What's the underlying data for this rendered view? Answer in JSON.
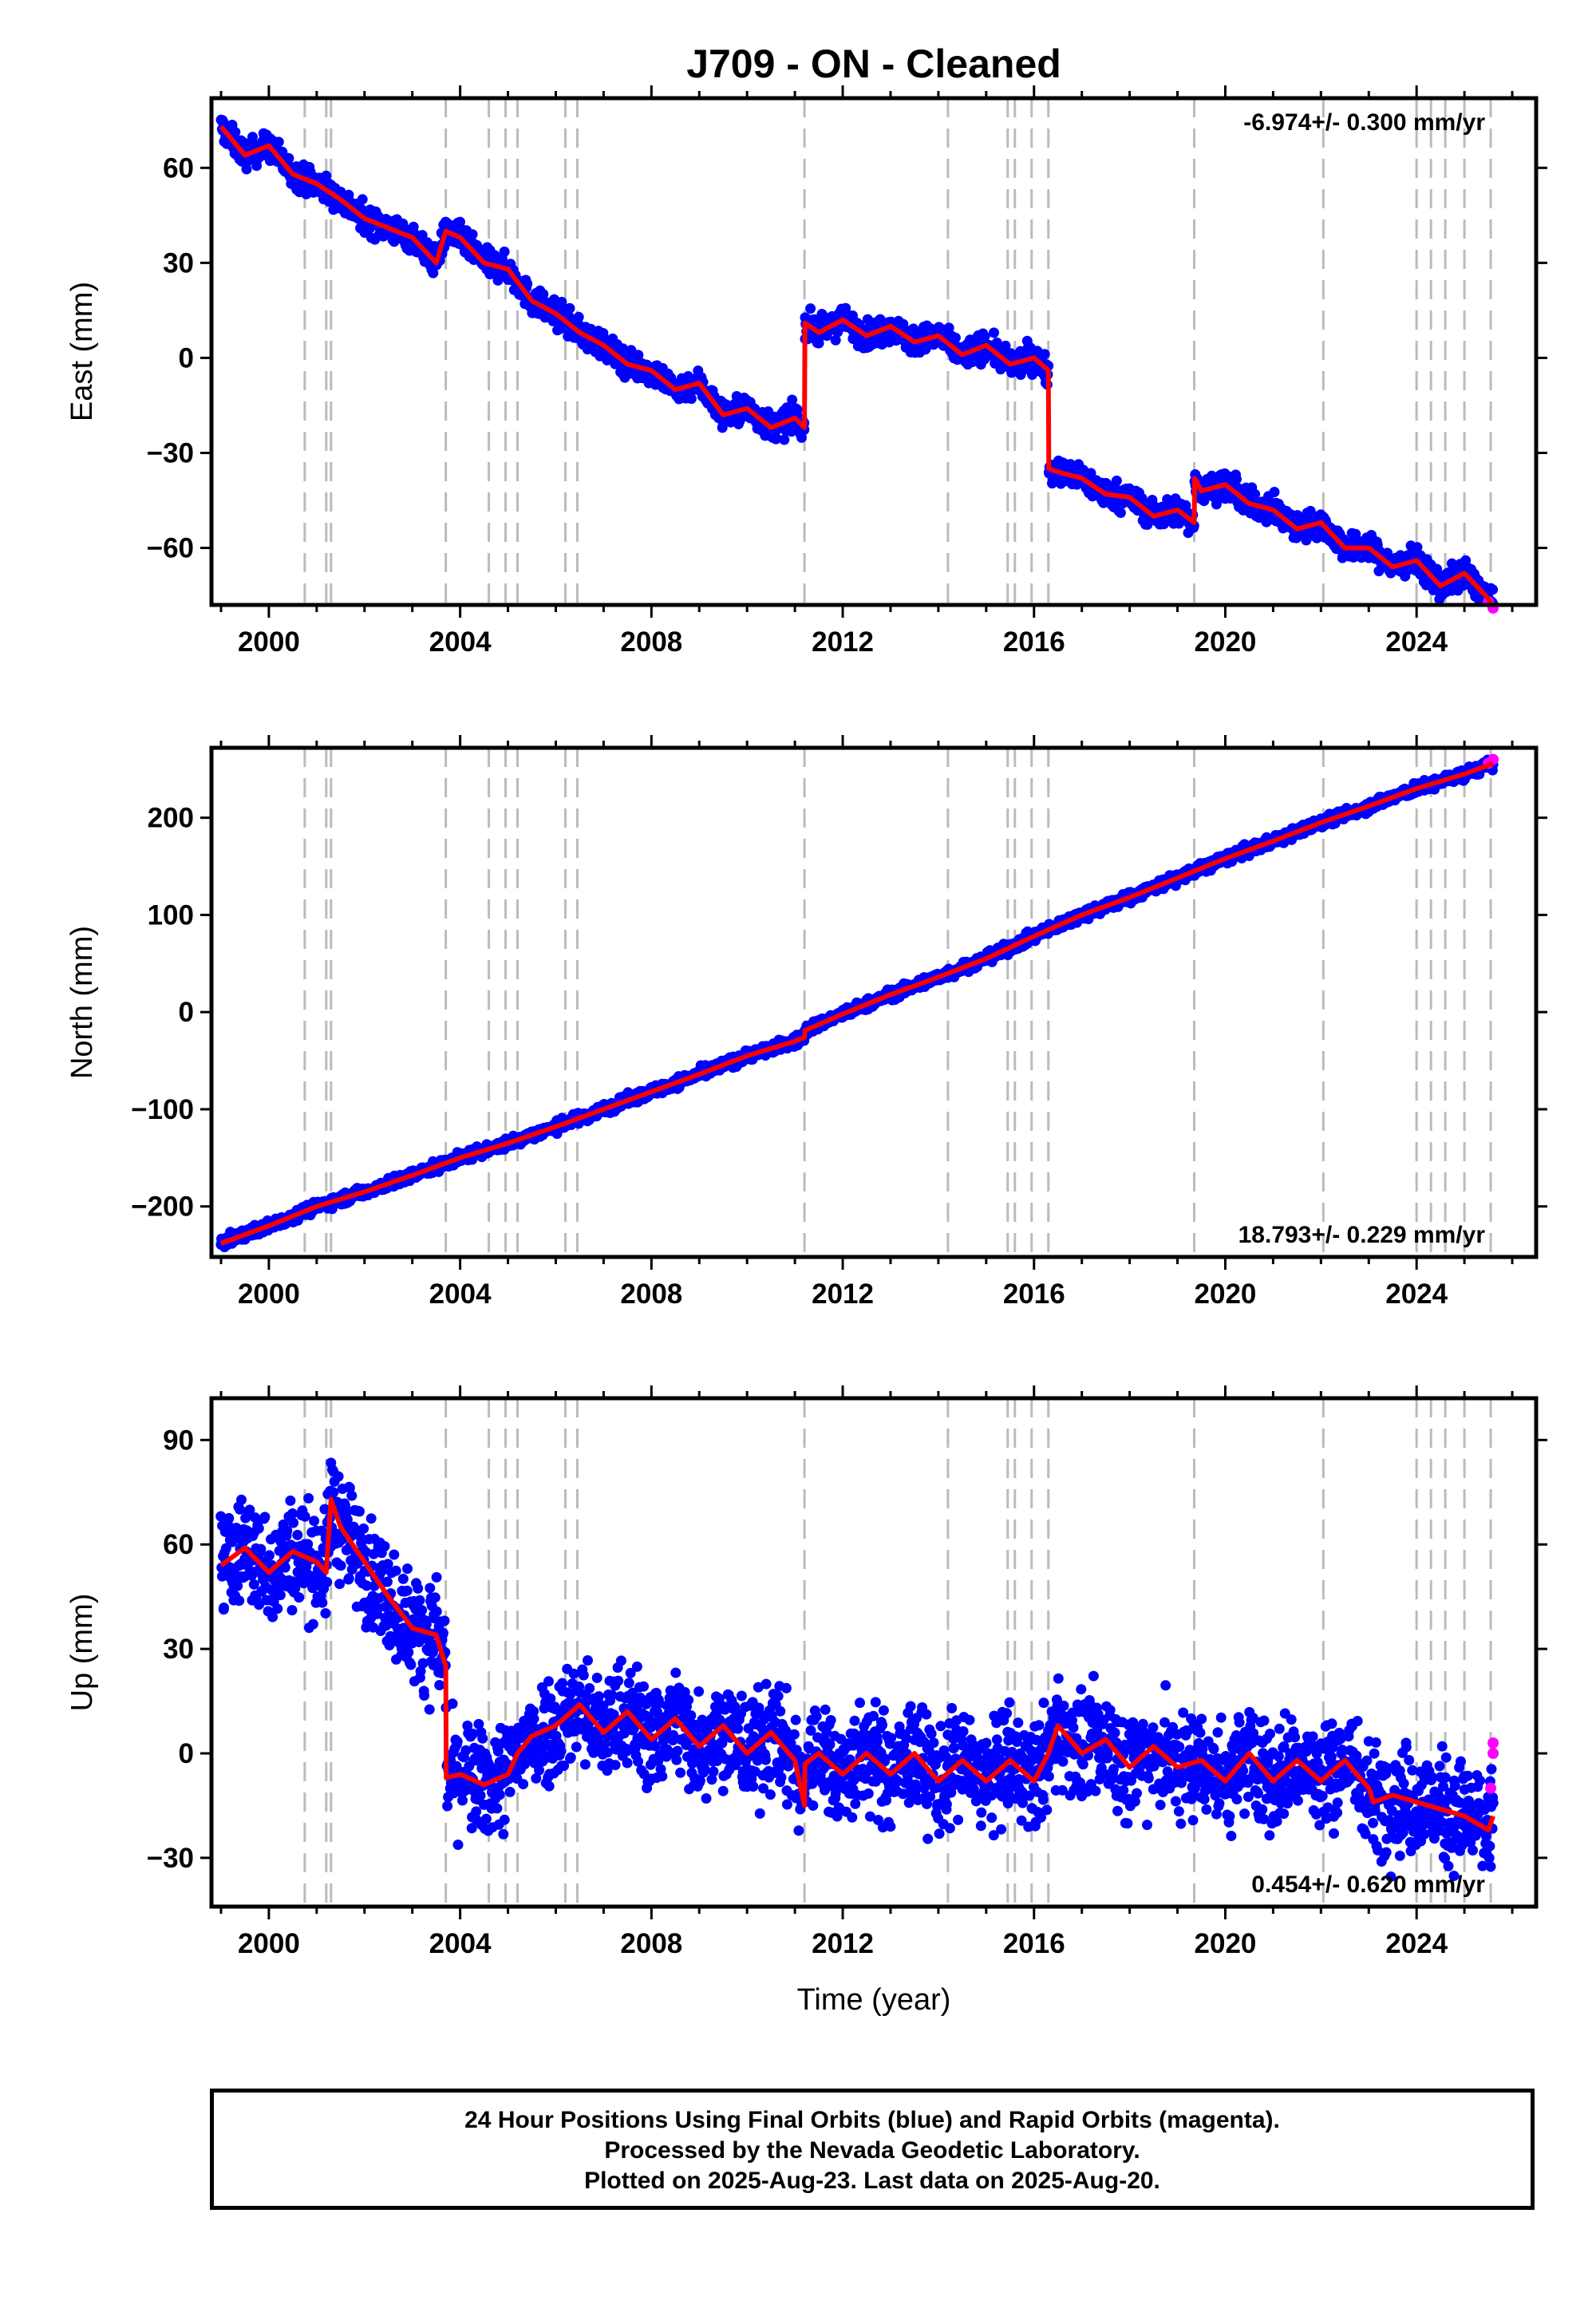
{
  "title": "J709  - ON - Cleaned",
  "footer": {
    "line1": "24 Hour Positions Using Final Orbits (blue) and Rapid Orbits (magenta).",
    "line2": "Processed by the Nevada Geodetic Laboratory.",
    "line3": "Plotted on 2025-Aug-23. Last data on 2025-Aug-20."
  },
  "colors": {
    "final_orbits": "#0000ff",
    "rapid_orbits": "#ff00ff",
    "model": "#ff0000",
    "event_lines": "#bbbbbb"
  },
  "event_years": [
    2000.75,
    2001.2,
    2001.3,
    2003.7,
    2004.6,
    2004.95,
    2005.2,
    2006.2,
    2006.45,
    2011.2,
    2014.2,
    2015.45,
    2015.6,
    2015.95,
    2016.3,
    2019.35,
    2022.05,
    2024.0,
    2024.3,
    2024.6,
    2025.0,
    2025.55
  ],
  "chart_data": [
    {
      "type": "scatter",
      "ylabel": "East (mm)",
      "xlim": [
        1998.8,
        2026.5
      ],
      "ylim": [
        -78,
        82
      ],
      "xticks": [
        "2000",
        "2004",
        "2008",
        "2012",
        "2016",
        "2020",
        "2024"
      ],
      "xtick_values": [
        2000,
        2004,
        2008,
        2012,
        2016,
        2020,
        2024
      ],
      "yticks": [
        "60",
        "30",
        "0",
        "−30",
        "−60"
      ],
      "ytick_values": [
        60,
        30,
        0,
        -30,
        -60
      ],
      "rate_label": "-6.974+/- 0.300 mm/yr",
      "rate_position": "top-right",
      "noise_mm": 3,
      "rapid_orbits": {
        "x": [
          2025.5,
          2025.6
        ],
        "y": [
          -77,
          -79
        ]
      },
      "series": [
        {
          "name": "model",
          "x": [
            1999.0,
            1999.5,
            2000.0,
            2000.5,
            2001.0,
            2001.5,
            2002.0,
            2002.5,
            2003.0,
            2003.5,
            2003.7,
            2004.0,
            2004.5,
            2005.0,
            2005.5,
            2006.0,
            2006.5,
            2007.0,
            2007.5,
            2008.0,
            2008.5,
            2009.0,
            2009.5,
            2010.0,
            2010.5,
            2011.0,
            2011.2,
            2011.21,
            2011.5,
            2012.0,
            2012.5,
            2013.0,
            2013.5,
            2014.0,
            2014.5,
            2015.0,
            2015.5,
            2016.0,
            2016.3,
            2016.31,
            2016.5,
            2017.0,
            2017.5,
            2018.0,
            2018.5,
            2019.0,
            2019.35,
            2019.36,
            2019.5,
            2020.0,
            2020.5,
            2021.0,
            2021.5,
            2022.0,
            2022.5,
            2023.0,
            2023.5,
            2024.0,
            2024.5,
            2025.0,
            2025.5,
            2025.6
          ],
          "y": [
            73,
            64,
            67,
            58,
            55,
            50,
            44,
            41,
            38,
            30,
            40,
            38,
            30,
            28,
            18,
            14,
            8,
            4,
            -2,
            -4,
            -10,
            -8,
            -18,
            -16,
            -22,
            -19,
            -22,
            11,
            8,
            12,
            7,
            10,
            5,
            7,
            1,
            4,
            -2,
            0,
            -4,
            -35,
            -36,
            -38,
            -43,
            -44,
            -50,
            -48,
            -52,
            -38,
            -42,
            -40,
            -46,
            -48,
            -54,
            -52,
            -60,
            -60,
            -66,
            -64,
            -72,
            -68,
            -76,
            -79
          ]
        }
      ]
    },
    {
      "type": "scatter",
      "ylabel": "North (mm)",
      "xlim": [
        1998.8,
        2026.5
      ],
      "ylim": [
        -252,
        272
      ],
      "xticks": [
        "2000",
        "2004",
        "2008",
        "2012",
        "2016",
        "2020",
        "2024"
      ],
      "xtick_values": [
        2000,
        2004,
        2008,
        2012,
        2016,
        2020,
        2024
      ],
      "yticks": [
        "200",
        "100",
        "0",
        "−100",
        "−200"
      ],
      "ytick_values": [
        200,
        100,
        0,
        -100,
        -200
      ],
      "rate_label": "18.793+/- 0.229 mm/yr",
      "rate_position": "bottom-right",
      "noise_mm": 4,
      "rapid_orbits": {
        "x": [
          2025.5,
          2025.6
        ],
        "y": [
          256,
          260
        ]
      },
      "series": [
        {
          "name": "model",
          "x": [
            1999.0,
            2000.0,
            2001.0,
            2002.0,
            2003.0,
            2004.0,
            2005.0,
            2006.0,
            2007.0,
            2008.0,
            2009.0,
            2010.0,
            2011.0,
            2011.2,
            2011.21,
            2012.0,
            2013.0,
            2014.0,
            2015.0,
            2016.0,
            2017.0,
            2018.0,
            2019.0,
            2020.0,
            2021.0,
            2022.0,
            2023.0,
            2024.0,
            2025.0,
            2025.6
          ],
          "y": [
            -238,
            -220,
            -200,
            -185,
            -168,
            -150,
            -135,
            -118,
            -100,
            -82,
            -64,
            -45,
            -30,
            -26,
            -19,
            -2,
            18,
            36,
            55,
            78,
            100,
            118,
            138,
            158,
            176,
            195,
            212,
            230,
            245,
            256
          ]
        }
      ]
    },
    {
      "type": "scatter",
      "ylabel": "Up (mm)",
      "xlim": [
        1998.8,
        2026.5
      ],
      "ylim": [
        -44,
        102
      ],
      "xticks": [
        "2000",
        "2004",
        "2008",
        "2012",
        "2016",
        "2020",
        "2024"
      ],
      "xtick_values": [
        2000,
        2004,
        2008,
        2012,
        2016,
        2020,
        2024
      ],
      "yticks": [
        "90",
        "60",
        "30",
        "0",
        "−30"
      ],
      "ytick_values": [
        90,
        60,
        30,
        0,
        -30
      ],
      "rate_label": "0.454+/- 0.620 mm/yr",
      "rate_position": "bottom-right",
      "noise_mm": 11,
      "rapid_orbits": {
        "x": [
          2025.55,
          2025.6,
          2025.6
        ],
        "y": [
          -10,
          0,
          3
        ]
      },
      "series": [
        {
          "name": "model",
          "x": [
            1999.0,
            1999.5,
            2000.0,
            2000.5,
            2001.0,
            2001.2,
            2001.3,
            2001.5,
            2002.0,
            2002.5,
            2003.0,
            2003.5,
            2003.7,
            2003.71,
            2004.0,
            2004.5,
            2005.0,
            2005.2,
            2005.5,
            2006.0,
            2006.5,
            2007.0,
            2007.5,
            2008.0,
            2008.5,
            2009.0,
            2009.5,
            2010.0,
            2010.5,
            2011.0,
            2011.2,
            2011.21,
            2011.5,
            2012.0,
            2012.5,
            2013.0,
            2013.5,
            2014.0,
            2014.5,
            2015.0,
            2015.5,
            2016.0,
            2016.3,
            2016.5,
            2017.0,
            2017.5,
            2018.0,
            2018.5,
            2019.0,
            2019.5,
            2020.0,
            2020.5,
            2021.0,
            2021.5,
            2022.0,
            2022.5,
            2023.0,
            2023.1,
            2023.5,
            2024.0,
            2024.5,
            2025.0,
            2025.5,
            2025.6
          ],
          "y": [
            54,
            59,
            52,
            58,
            55,
            52,
            73,
            65,
            55,
            45,
            36,
            34,
            25,
            -7,
            -6,
            -9,
            -6,
            0,
            5,
            8,
            14,
            6,
            12,
            4,
            10,
            2,
            8,
            0,
            6,
            -2,
            -15,
            -3,
            0,
            -6,
            0,
            -6,
            0,
            -8,
            -2,
            -8,
            -2,
            -8,
            0,
            8,
            0,
            4,
            -4,
            2,
            -4,
            -2,
            -8,
            0,
            -8,
            -2,
            -8,
            -2,
            -10,
            -14,
            -12,
            -14,
            -16,
            -18,
            -22,
            -18
          ]
        }
      ]
    }
  ],
  "xlabel": "Time (year)"
}
